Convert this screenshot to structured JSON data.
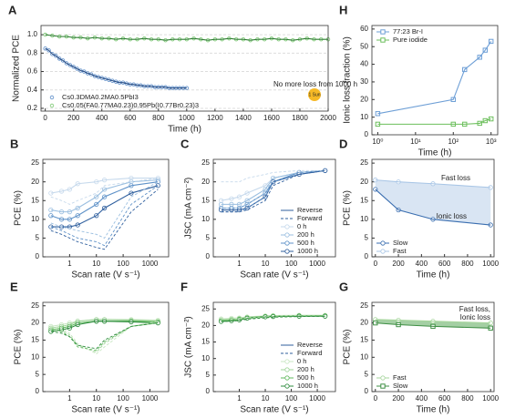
{
  "chart_data": [
    {
      "type": "scatter",
      "label": "A",
      "xlabel": "Time (h)",
      "ylabel": "Normalized PCE",
      "xlim": [
        -30,
        2000
      ],
      "xticks": [
        0,
        200,
        400,
        600,
        800,
        1000,
        1200,
        1400,
        1600,
        1800,
        2000
      ],
      "ylim": [
        0.17,
        1.1
      ],
      "yticks": [
        0.2,
        0.4,
        0.6,
        0.8,
        {
          "value": 1,
          "label": "1.0"
        }
      ],
      "grid": true,
      "fit_line": true,
      "legend": "lower left",
      "annotations": [
        "No more loss from 1000 h",
        "1 Sun"
      ],
      "series": [
        {
          "name": "Cs0.3DMA0.2MA0.5PbI3",
          "color": "#5b8cc8",
          "line_color": "#2a4f86",
          "marker": "circle",
          "x": [
            0,
            25,
            50,
            75,
            100,
            125,
            150,
            175,
            200,
            225,
            250,
            275,
            300,
            325,
            350,
            375,
            400,
            425,
            450,
            475,
            500,
            525,
            550,
            575,
            600,
            625,
            650,
            675,
            700,
            725,
            750,
            775,
            800,
            825,
            850,
            875,
            900,
            925,
            950,
            975,
            1000
          ],
          "values": [
            0.85,
            0.83,
            0.79,
            0.77,
            0.74,
            0.72,
            0.69,
            0.67,
            0.65,
            0.63,
            0.61,
            0.6,
            0.58,
            0.57,
            0.55,
            0.54,
            0.53,
            0.52,
            0.51,
            0.5,
            0.49,
            0.48,
            0.48,
            0.47,
            0.46,
            0.46,
            0.45,
            0.45,
            0.44,
            0.44,
            0.44,
            0.43,
            0.43,
            0.43,
            0.43,
            0.42,
            0.42,
            0.42,
            0.42,
            0.42,
            0.42
          ]
        },
        {
          "name": "Cs0.05(FA0.77MA0.23)0.95Pb(I0.77Br0.23)3",
          "color": "#7cc873",
          "line_color": "#2e7d32",
          "marker": "circle",
          "x": [
            0,
            50,
            100,
            150,
            200,
            250,
            300,
            350,
            400,
            450,
            500,
            550,
            600,
            650,
            700,
            750,
            800,
            850,
            900,
            950,
            1000,
            1050,
            1100,
            1150,
            1200,
            1250,
            1300,
            1350,
            1400,
            1450,
            1500,
            1550,
            1600,
            1650,
            1700,
            1750,
            1800,
            1850,
            1900,
            1950,
            2000
          ],
          "values": [
            1.0,
            0.99,
            0.98,
            0.98,
            0.97,
            0.97,
            0.96,
            0.97,
            0.96,
            0.96,
            0.95,
            0.96,
            0.95,
            0.95,
            0.96,
            0.95,
            0.95,
            0.94,
            0.95,
            0.95,
            0.95,
            0.96,
            0.95,
            0.94,
            0.95,
            0.95,
            0.96,
            0.95,
            0.95,
            0.94,
            0.95,
            0.95,
            0.96,
            0.95,
            0.95,
            0.94,
            0.95,
            0.96,
            0.95,
            0.95,
            0.95
          ]
        }
      ]
    },
    {
      "type": "line",
      "label": "H",
      "xlabel": "Time (h)",
      "ylabel": "Ionic loss fraction (%)",
      "xlog": true,
      "xlim": [
        0.7,
        1500
      ],
      "xticks": [
        {
          "value": 1,
          "label": "10⁰"
        },
        {
          "value": 10,
          "label": "10¹"
        },
        {
          "value": 100,
          "label": "10²"
        },
        {
          "value": 1000,
          "label": "10³"
        }
      ],
      "ylim": [
        0,
        62
      ],
      "yticks": [
        0,
        10,
        20,
        30,
        40,
        50,
        60
      ],
      "legend": "upper left",
      "series": [
        {
          "name": "77:23 Br-I",
          "color": "#6e9fd6",
          "marker": "square",
          "x": [
            1,
            100,
            200,
            500,
            700,
            1000
          ],
          "values": [
            12,
            20,
            37,
            44,
            48,
            53
          ]
        },
        {
          "name": "Pure iodide",
          "color": "#6cbf5c",
          "marker": "square",
          "x": [
            1,
            100,
            200,
            500,
            700,
            1000
          ],
          "values": [
            6,
            6,
            6,
            6.5,
            8,
            9
          ]
        }
      ]
    },
    {
      "type": "line",
      "label": "B",
      "xlabel": "Scan rate (V s⁻¹)",
      "ylabel": "PCE (%)",
      "xlog": true,
      "xlim": [
        0.1,
        5000
      ],
      "xticks": [
        1,
        10,
        100,
        1000
      ],
      "ylim": [
        0,
        26
      ],
      "yticks": [
        0,
        5,
        10,
        15,
        20,
        25
      ],
      "x": [
        0.2,
        0.5,
        1,
        2,
        10,
        20,
        200,
        2000
      ],
      "series": [
        {
          "color": "#c6d9ec",
          "marker": "circle",
          "values": [
            17,
            17.5,
            18,
            19.5,
            20,
            20.5,
            21,
            21
          ]
        },
        {
          "color": "#9bbfe0",
          "marker": "circle",
          "values": [
            12.5,
            12,
            12,
            13,
            16,
            18,
            20,
            20.5
          ]
        },
        {
          "color": "#5f92c8",
          "marker": "circle",
          "values": [
            11,
            10,
            10,
            11,
            14,
            16,
            19,
            20
          ]
        },
        {
          "color": "#2f5f9e",
          "marker": "circle",
          "values": [
            8,
            8,
            8,
            8.5,
            11,
            13,
            17,
            19
          ]
        },
        {
          "color": "#c6d9ec",
          "dashed": true,
          "values": [
            16,
            15,
            14,
            15,
            17,
            19,
            20,
            21
          ]
        },
        {
          "color": "#9bbfe0",
          "dashed": true,
          "values": [
            9,
            8,
            7.5,
            7,
            6,
            5,
            16,
            20
          ]
        },
        {
          "color": "#5f92c8",
          "dashed": true,
          "values": [
            8,
            7,
            6,
            5,
            4,
            3,
            14,
            19
          ]
        },
        {
          "color": "#2f5f9e",
          "dashed": true,
          "values": [
            7,
            6,
            5,
            4,
            2.5,
            2,
            12,
            18
          ]
        }
      ]
    },
    {
      "type": "line",
      "label": "C",
      "xlabel": "Scan rate (V s⁻¹)",
      "ylabel": "JSC (mA cm⁻²)",
      "xlog": true,
      "xlim": [
        0.1,
        5000
      ],
      "xticks": [
        1,
        10,
        100,
        1000
      ],
      "ylim": [
        0,
        26
      ],
      "yticks": [
        0,
        5,
        10,
        15,
        20,
        25
      ],
      "legend": "lower right",
      "line_styles": [
        "Reverse",
        "Forward"
      ],
      "x": [
        0.2,
        0.5,
        1,
        2,
        10,
        20,
        200,
        2000
      ],
      "series": [
        {
          "name": "0 h",
          "color": "#c6d9ec",
          "marker": "circle",
          "values": [
            15,
            15.5,
            16,
            17,
            19,
            21,
            22.5,
            23
          ]
        },
        {
          "name": "200 h",
          "color": "#9bbfe0",
          "marker": "circle",
          "values": [
            14,
            14,
            14,
            15,
            18,
            21,
            22.5,
            23
          ]
        },
        {
          "name": "500 h",
          "color": "#5f92c8",
          "marker": "circle",
          "values": [
            13,
            13,
            13,
            14,
            17,
            20,
            22.5,
            23
          ]
        },
        {
          "name": "1000 h",
          "color": "#2f5f9e",
          "marker": "circle",
          "values": [
            12.5,
            12.5,
            12.5,
            13,
            16,
            20,
            22,
            23
          ]
        },
        {
          "color": "#c6d9ec",
          "dashed": true,
          "values": [
            20,
            20,
            20,
            21,
            22,
            22.5,
            23,
            23
          ]
        },
        {
          "color": "#9bbfe0",
          "dashed": true,
          "values": [
            13,
            13,
            13,
            14,
            17,
            21,
            22.5,
            23
          ]
        },
        {
          "color": "#5f92c8",
          "dashed": true,
          "values": [
            12,
            12,
            12,
            13,
            16,
            20,
            22,
            23
          ]
        },
        {
          "color": "#2f5f9e",
          "dashed": true,
          "values": [
            12,
            12,
            12,
            12.5,
            15,
            19,
            22,
            23
          ]
        }
      ]
    },
    {
      "type": "line",
      "label": "D",
      "xlabel": "Time (h)",
      "ylabel": "PCE (%)",
      "xlim": [
        -30,
        1030
      ],
      "xticks": [
        0,
        200,
        400,
        600,
        800,
        1000
      ],
      "ylim": [
        0,
        26
      ],
      "yticks": [
        0,
        5,
        10,
        15,
        20,
        25
      ],
      "legend": "lower left",
      "fill": "#b9d0ea",
      "annotations": [
        "Fast loss",
        "Ionic loss"
      ],
      "x": [
        0,
        200,
        500,
        1000
      ],
      "series": [
        {
          "name": "Slow",
          "color": "#3a6eb0",
          "marker": "circle",
          "values": [
            18,
            12.5,
            10,
            8.5
          ]
        },
        {
          "name": "Fast",
          "color": "#a9c6e6",
          "marker": "circle",
          "values": [
            20.5,
            20,
            19.5,
            18.5
          ]
        }
      ]
    },
    {
      "type": "line",
      "label": "E",
      "xlabel": "Scan rate (V s⁻¹)",
      "ylabel": "PCE (%)",
      "xlog": true,
      "xlim": [
        0.1,
        5000
      ],
      "xticks": [
        1,
        10,
        100,
        1000
      ],
      "ylim": [
        0,
        26
      ],
      "yticks": [
        0,
        5,
        10,
        15,
        20,
        25
      ],
      "x": [
        0.2,
        0.5,
        1,
        2,
        10,
        20,
        200,
        2000
      ],
      "series": [
        {
          "color": "#c9e7c3",
          "marker": "circle",
          "values": [
            19,
            19.5,
            20,
            20.5,
            21,
            21,
            21,
            20.8
          ]
        },
        {
          "color": "#9fd49a",
          "marker": "circle",
          "values": [
            18.5,
            19,
            19.5,
            20.5,
            21,
            21,
            20.8,
            20.5
          ]
        },
        {
          "color": "#5fb95c",
          "marker": "circle",
          "values": [
            18,
            18.5,
            19,
            20,
            20.5,
            20.5,
            20.5,
            20.3
          ]
        },
        {
          "color": "#2e8b3e",
          "marker": "circle",
          "values": [
            17.5,
            18,
            18.5,
            19.5,
            20.5,
            20.5,
            20.3,
            20
          ]
        },
        {
          "color": "#c9e7c3",
          "dashed": true,
          "values": [
            19,
            18.5,
            17,
            14,
            11,
            13,
            19,
            20.5
          ]
        },
        {
          "color": "#9fd49a",
          "dashed": true,
          "values": [
            18.5,
            18,
            16.5,
            13.5,
            11.5,
            14,
            19,
            20.3
          ]
        },
        {
          "color": "#5fb95c",
          "dashed": true,
          "values": [
            18,
            17.5,
            16,
            13,
            12,
            14.5,
            19,
            20
          ]
        },
        {
          "color": "#2e8b3e",
          "dashed": true,
          "values": [
            17.5,
            17,
            16,
            13.5,
            12.5,
            15,
            19,
            20
          ]
        }
      ]
    },
    {
      "type": "line",
      "label": "F",
      "xlabel": "Scan rate (V s⁻¹)",
      "ylabel": "JSC (mA cm⁻²)",
      "xlog": true,
      "xlim": [
        0.1,
        5000
      ],
      "xticks": [
        1,
        10,
        100,
        1000
      ],
      "ylim": [
        0,
        27
      ],
      "yticks": [
        0,
        5,
        10,
        15,
        20,
        25
      ],
      "legend": "lower right",
      "line_styles": [
        "Reverse",
        "Forward"
      ],
      "x": [
        0.2,
        0.5,
        1,
        2,
        10,
        20,
        200,
        2000
      ],
      "series": [
        {
          "name": "0 h",
          "color": "#c9e7c3",
          "marker": "circle",
          "values": [
            22,
            22.2,
            22.3,
            22.6,
            22.9,
            23,
            23.1,
            23.1
          ]
        },
        {
          "name": "200 h",
          "color": "#9fd49a",
          "marker": "circle",
          "values": [
            21.7,
            21.9,
            22.1,
            22.5,
            22.8,
            22.9,
            23,
            23
          ]
        },
        {
          "name": "500 h",
          "color": "#5fb95c",
          "marker": "circle",
          "values": [
            21.4,
            21.6,
            21.9,
            22.3,
            22.7,
            22.8,
            22.9,
            22.9
          ]
        },
        {
          "name": "1000 h",
          "color": "#2e8b3e",
          "marker": "circle",
          "values": [
            21.2,
            21.4,
            21.7,
            22.2,
            22.6,
            22.7,
            22.8,
            22.8
          ]
        },
        {
          "color": "#c9e7c3",
          "dashed": true,
          "values": [
            22,
            22,
            22.1,
            22.3,
            22.6,
            22.8,
            23,
            23
          ]
        },
        {
          "color": "#9fd49a",
          "dashed": true,
          "values": [
            21.8,
            21.8,
            21.9,
            22.2,
            22.5,
            22.7,
            22.9,
            23
          ]
        },
        {
          "color": "#5fb95c",
          "dashed": true,
          "values": [
            21.5,
            21.5,
            21.7,
            22,
            22.4,
            22.6,
            22.8,
            22.9
          ]
        },
        {
          "color": "#2e8b3e",
          "dashed": true,
          "values": [
            21.2,
            21.3,
            21.5,
            21.9,
            22.3,
            22.5,
            22.7,
            22.8
          ]
        }
      ]
    },
    {
      "type": "line",
      "label": "G",
      "xlabel": "Time (h)",
      "ylabel": "PCE (%)",
      "xlim": [
        -30,
        1030
      ],
      "xticks": [
        0,
        200,
        400,
        600,
        800,
        1000
      ],
      "ylim": [
        0,
        26
      ],
      "yticks": [
        0,
        5,
        10,
        15,
        20,
        25
      ],
      "legend": "lower left",
      "fill": "#5aa85a",
      "annotations": [
        "Fast loss,",
        "Ionic loss"
      ],
      "x": [
        0,
        200,
        500,
        1000
      ],
      "series": [
        {
          "name": "Fast",
          "color": "#a6d69c",
          "marker": "circle",
          "values": [
            21,
            20.8,
            20.5,
            20
          ]
        },
        {
          "name": "Slow",
          "color": "#3f8f45",
          "marker": "square",
          "values": [
            20,
            19.5,
            19,
            18.5
          ]
        }
      ]
    }
  ]
}
